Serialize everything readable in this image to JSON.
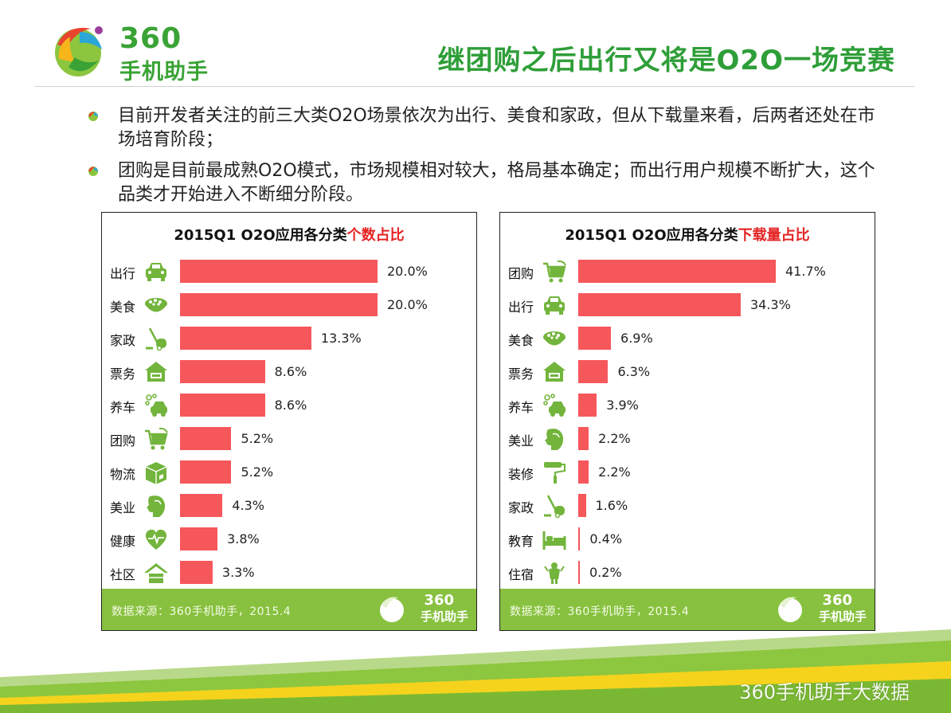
{
  "header": {
    "logo_number": "360",
    "logo_text": "手机助手",
    "title": "继团购之后出行又将是O2O一场竞赛"
  },
  "bullets": [
    "目前开发者关注的前三大类O2O场景依次为出行、美食和家政，但从下载量来看，后两者还处在市场培育阶段；",
    "团购是目前最成熟O2O模式，市场规模相对较大，格局基本确定；而出行用户规模不断扩大，这个品类才开始进入不断细分阶段。"
  ],
  "watermark": "360手机助手大数据",
  "chart_data": [
    {
      "type": "bar",
      "orientation": "horizontal",
      "title": "2015Q1 O2O应用各分类个数占比",
      "title_prefix": "2015Q1 O2O应用各分类",
      "title_highlight": "个数占比",
      "categories": [
        "出行",
        "美食",
        "家政",
        "票务",
        "养车",
        "团购",
        "物流",
        "美业",
        "健康",
        "社区"
      ],
      "icons": [
        "car-icon",
        "food-bowl-icon",
        "vacuum-icon",
        "ticket-house-icon",
        "car-wash-icon",
        "shopping-cart-icon",
        "package-box-icon",
        "beauty-face-icon",
        "heart-pulse-icon",
        "community-house-icon"
      ],
      "values": [
        20.0,
        20.0,
        13.3,
        8.6,
        8.6,
        5.2,
        5.2,
        4.3,
        3.8,
        3.3
      ],
      "labels": [
        "20.0%",
        "20.0%",
        "13.3%",
        "8.6%",
        "8.6%",
        "5.2%",
        "5.2%",
        "4.3%",
        "3.8%",
        "3.3%"
      ],
      "xlim": [
        0,
        20
      ],
      "source": "数据来源：360手机助手，2015.4",
      "footer_logo_number": "360",
      "footer_logo_text": "手机助手",
      "bar_color": "#f6575b"
    },
    {
      "type": "bar",
      "orientation": "horizontal",
      "title": "2015Q1 O2O应用各分类下载量占比",
      "title_prefix": "2015Q1 O2O应用各分类",
      "title_highlight": "下载量占比",
      "categories": [
        "团购",
        "出行",
        "美食",
        "票务",
        "养车",
        "美业",
        "装修",
        "家政",
        "教育",
        "住宿"
      ],
      "icons": [
        "shopping-cart-icon",
        "car-icon",
        "food-bowl-icon",
        "ticket-house-icon",
        "car-wash-icon",
        "beauty-face-icon",
        "paint-roller-icon",
        "vacuum-icon",
        "bed-icon",
        "hotel-bell-icon"
      ],
      "values": [
        41.7,
        34.3,
        6.9,
        6.3,
        3.9,
        2.2,
        2.2,
        1.6,
        0.4,
        0.2
      ],
      "labels": [
        "41.7%",
        "34.3%",
        "6.9%",
        "6.3%",
        "3.9%",
        "2.2%",
        "2.2%",
        "1.6%",
        "0.4%",
        "0.2%"
      ],
      "xlim": [
        0,
        41.7
      ],
      "source": "数据来源：360手机助手，2015.4",
      "footer_logo_number": "360",
      "footer_logo_text": "手机助手",
      "bar_color": "#f6575b"
    }
  ]
}
